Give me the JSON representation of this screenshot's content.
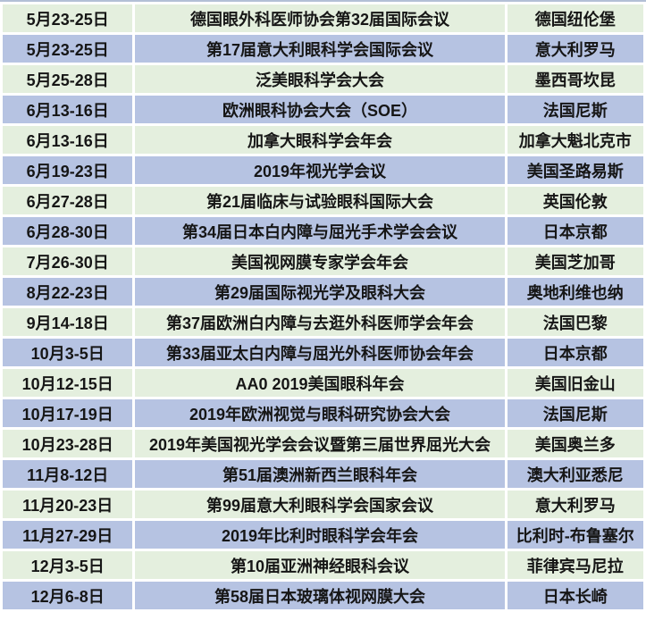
{
  "colors": {
    "row_green": "#e4efde",
    "row_blue": "#b6c3e2",
    "gutter_white": "#ffffff",
    "text": "#161616",
    "top_sliver": "#b3c0d6"
  },
  "table": {
    "columns": [
      "date",
      "event",
      "location"
    ],
    "rows": [
      {
        "date": "5月23-25日",
        "event": "德国眼外科医师协会第32届国际会议",
        "location": "德国纽伦堡"
      },
      {
        "date": "5月23-25日",
        "event": "第17届意大利眼科学会国际会议",
        "location": "意大利罗马"
      },
      {
        "date": "5月25-28日",
        "event": "泛美眼科学会大会",
        "location": "墨西哥坎昆"
      },
      {
        "date": "6月13-16日",
        "event": "欧洲眼科协会大会（SOE）",
        "location": "法国尼斯"
      },
      {
        "date": "6月13-16日",
        "event": "加拿大眼科学会年会",
        "location": "加拿大魁北克市"
      },
      {
        "date": "6月19-23日",
        "event": "2019年视光学会议",
        "location": "美国圣路易斯"
      },
      {
        "date": "6月27-28日",
        "event": "第21届临床与试验眼科国际大会",
        "location": "英国伦敦"
      },
      {
        "date": "6月28-30日",
        "event": "第34届日本白内障与屈光手术学会会议",
        "location": "日本京都"
      },
      {
        "date": "7月26-30日",
        "event": "美国视网膜专家学会年会",
        "location": "美国芝加哥"
      },
      {
        "date": "8月22-23日",
        "event": "第29届国际视光学及眼科大会",
        "location": "奥地利维也纳"
      },
      {
        "date": "9月14-18日",
        "event": "第37届欧洲白内障与去逛外科医师学会年会",
        "location": "法国巴黎"
      },
      {
        "date": "10月3-5日",
        "event": "第33届亚太白内障与屈光外科医师协会年会",
        "location": "日本京都"
      },
      {
        "date": "10月12-15日",
        "event": "AA0 2019美国眼科年会",
        "location": "美国旧金山"
      },
      {
        "date": "10月17-19日",
        "event": "2019年欧洲视觉与眼科研究协会大会",
        "location": "法国尼斯"
      },
      {
        "date": "10月23-28日",
        "event": "2019年美国视光学会会议暨第三届世界屈光大会",
        "location": "美国奥兰多"
      },
      {
        "date": "11月8-12日",
        "event": "第51届澳洲新西兰眼科年会",
        "location": "澳大利亚悉尼"
      },
      {
        "date": "11月20-23日",
        "event": "第99届意大利眼科学会国家会议",
        "location": "意大利罗马"
      },
      {
        "date": "11月27-29日",
        "event": "2019年比利时眼科学会年会",
        "location": "比利时-布鲁塞尔"
      },
      {
        "date": "12月3-5日",
        "event": "第10届亚洲神经眼科会议",
        "location": "菲律宾马尼拉"
      },
      {
        "date": "12月6-8日",
        "event": "第58届日本玻璃体视网膜大会",
        "location": "日本长崎"
      }
    ]
  }
}
